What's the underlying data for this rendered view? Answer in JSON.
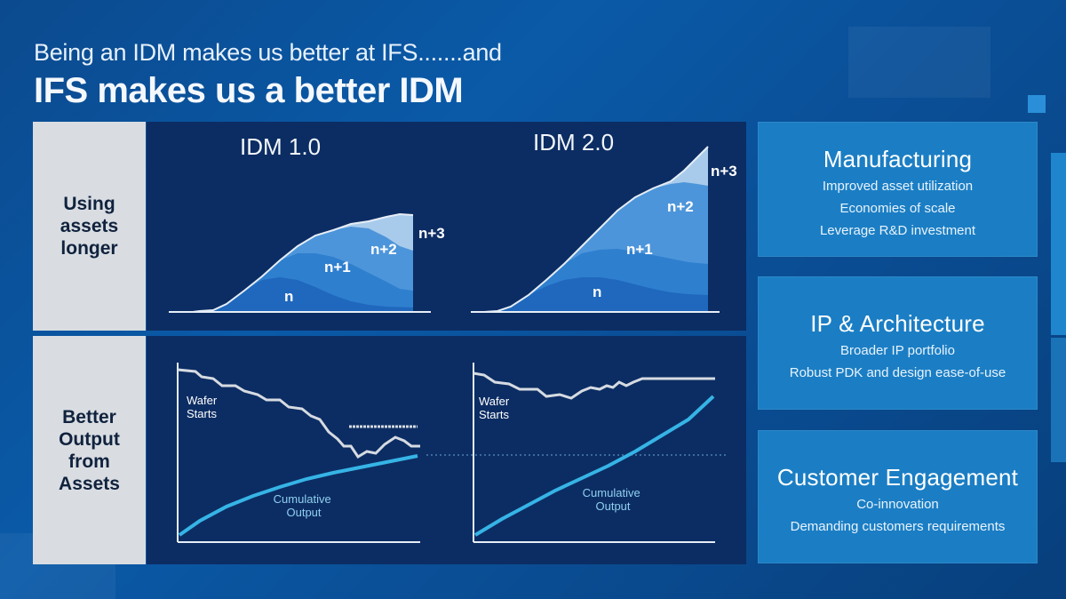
{
  "heading": {
    "line1": "Being an IDM makes us better at IFS.......and",
    "line2": "IFS makes us a better IDM"
  },
  "rows": [
    {
      "label_lines": [
        "Using",
        "assets",
        "longer"
      ]
    },
    {
      "label_lines": [
        "Better",
        "Output",
        "from",
        "Assets"
      ]
    }
  ],
  "top_charts": {
    "left_title": "IDM 1.0",
    "right_title": "IDM 2.0",
    "left_layers": [
      "n",
      "n+1",
      "n+2",
      "n+3"
    ],
    "right_layers": [
      "n",
      "n+1",
      "n+2",
      "n+3"
    ]
  },
  "bottom_charts": {
    "left_wafer_label": [
      "Wafer",
      "Starts"
    ],
    "left_output_label": [
      "Cumulative",
      "Output"
    ],
    "right_wafer_label": [
      "Wafer",
      "Starts"
    ],
    "right_output_label": [
      "Cumulative",
      "Output"
    ]
  },
  "cards": [
    {
      "title": "Manufacturing",
      "lines": [
        "Improved asset utilization",
        "Economies of scale",
        "Leverage R&D investment"
      ]
    },
    {
      "title": "IP & Architecture",
      "lines": [
        "Broader IP portfolio",
        "Robust PDK and design ease-of-use"
      ]
    },
    {
      "title": "Customer Engagement",
      "lines": [
        "Co-innovation",
        "Demanding customers requirements"
      ]
    }
  ],
  "colors": {
    "background": "#0a5aa8",
    "panel": "#0c2d63",
    "card": "#1b7ec4",
    "label_box": "#d9dde2",
    "output_line": "#36b4e6",
    "wafer_line": "#d6dbe2"
  }
}
